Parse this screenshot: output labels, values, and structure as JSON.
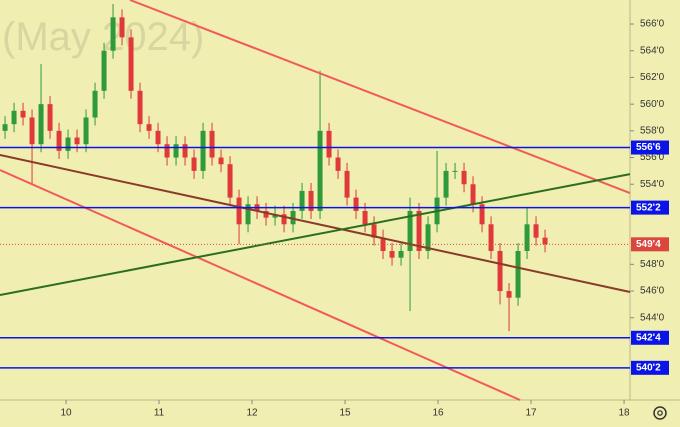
{
  "chart_data": {
    "type": "candlestick",
    "watermark": "(May 2024)",
    "up_color": "#2f9a3c",
    "down_color": "#e0393b",
    "x": [
      0,
      1,
      2,
      3,
      4,
      5,
      6,
      7,
      8,
      9,
      10,
      11,
      12,
      13,
      14,
      15,
      16,
      17,
      18,
      19,
      20,
      21,
      22,
      23,
      24,
      25,
      26,
      27,
      28,
      29,
      30,
      31,
      32,
      33,
      34,
      35,
      36,
      37,
      38,
      39,
      40,
      41,
      42,
      43,
      44,
      45,
      46,
      47,
      48,
      49,
      50,
      51,
      52,
      53,
      54,
      55,
      56,
      57,
      58,
      59,
      60
    ],
    "open": [
      558,
      558.5,
      559.5,
      559,
      557,
      560,
      558,
      556.5,
      557.5,
      557,
      559,
      561,
      564,
      566.5,
      565,
      561,
      558.5,
      558,
      557,
      556,
      557,
      556,
      555,
      558,
      556,
      555.5,
      553,
      551,
      552.5,
      552,
      551.5,
      551.75,
      551,
      552,
      553.5,
      552,
      558,
      556,
      555,
      553,
      552,
      551,
      550,
      549,
      548.5,
      549,
      552,
      549,
      551,
      553,
      555,
      555,
      554,
      552.5,
      551,
      549,
      546,
      545.5,
      549,
      551,
      550
    ],
    "high": [
      559.1,
      560.1,
      560.1,
      559.6,
      563,
      560.6,
      558.6,
      558.1,
      558.1,
      559.6,
      561.6,
      564.6,
      567.5,
      567.1,
      565.6,
      561.6,
      559.1,
      558.6,
      557.6,
      557.6,
      557.6,
      556.6,
      558.6,
      558.6,
      556.6,
      556.1,
      553.6,
      553.1,
      553.1,
      552.6,
      552.4,
      552.4,
      552.6,
      554.1,
      554.1,
      562.5,
      558.6,
      556.6,
      555.6,
      553.6,
      552.6,
      551.6,
      550.6,
      549.6,
      549.6,
      553,
      552.6,
      551.6,
      556.5,
      555.6,
      555.6,
      555.6,
      554.6,
      553.1,
      551.6,
      549.6,
      546.6,
      549.6,
      552.3,
      551.6,
      550.6
    ],
    "low": [
      557.4,
      557.9,
      558.4,
      554,
      556.4,
      557.4,
      555.9,
      555.9,
      556.4,
      556.4,
      558.4,
      560.4,
      563.4,
      564.4,
      560.4,
      557.9,
      557.4,
      556.4,
      555.4,
      555.4,
      555.4,
      554.4,
      554.4,
      555.4,
      554.9,
      552.4,
      549.5,
      550.4,
      551.4,
      550.9,
      550.9,
      550.4,
      550.4,
      551.4,
      551.4,
      551.4,
      555.4,
      554.4,
      552.4,
      551.4,
      550.4,
      549.4,
      548.4,
      547.9,
      547.9,
      544.5,
      548.4,
      548.4,
      550.4,
      552.4,
      554.4,
      553.4,
      551.9,
      550.4,
      548.4,
      545,
      543,
      544.9,
      548.4,
      549.4,
      548.9
    ],
    "close": [
      558.5,
      559.5,
      559,
      557,
      560,
      558,
      556.5,
      557.5,
      557,
      559,
      561,
      564,
      566.5,
      565,
      561,
      558.5,
      558,
      557,
      556,
      557,
      556,
      555,
      558,
      556,
      555.5,
      553,
      551,
      552.5,
      552,
      551.5,
      551.75,
      551,
      552,
      553.5,
      552,
      558,
      556,
      555,
      553,
      552,
      551,
      550,
      549,
      548.5,
      549,
      552,
      549,
      551,
      553,
      555,
      555,
      554,
      552.5,
      551,
      549,
      546,
      545.5,
      549,
      551,
      550,
      549.5
    ],
    "xlim": [
      -0.56,
      69.44
    ],
    "ylim": [
      537.84,
      567.8
    ],
    "xticks": [
      {
        "value": 6.78,
        "label": "10"
      },
      {
        "value": 17.11,
        "label": "11"
      },
      {
        "value": 27.44,
        "label": "12"
      },
      {
        "value": 37.78,
        "label": "15"
      },
      {
        "value": 48.11,
        "label": "16"
      },
      {
        "value": 58.44,
        "label": "17"
      },
      {
        "value": 68.78,
        "label": "18"
      }
    ],
    "yticks": [
      {
        "value": 566,
        "label": "566'0"
      },
      {
        "value": 564,
        "label": "564'0"
      },
      {
        "value": 562,
        "label": "562'0"
      },
      {
        "value": 560,
        "label": "560'0"
      },
      {
        "value": 558,
        "label": "558'0"
      },
      {
        "value": 556,
        "label": "556'0"
      },
      {
        "value": 554,
        "label": "554'0"
      },
      {
        "value": 548,
        "label": "548'0"
      },
      {
        "value": 546,
        "label": "546'0"
      },
      {
        "value": 544,
        "label": "544'0"
      }
    ],
    "levels": [
      {
        "value": 556.75,
        "label": "556'6",
        "color": "#0a14e6"
      },
      {
        "value": 552.25,
        "label": "552'2",
        "color": "#0a14e6"
      },
      {
        "value": 542.5,
        "label": "542'4",
        "color": "#0a14e6"
      },
      {
        "value": 540.25,
        "label": "540'2",
        "color": "#0a14e6"
      }
    ],
    "last_price": {
      "value": 549.5,
      "label": "549'4",
      "color": "#d9473f"
    },
    "trendlines": [
      {
        "color": "#f25a5a",
        "x": [
          13.89,
          69.44
        ],
        "y": [
          567.8,
          553.34
        ]
      },
      {
        "color": "#f25a5a",
        "x": [
          -0.56,
          57.22
        ],
        "y": [
          555.06,
          537.84
        ]
      },
      {
        "color": "#8a3a2a",
        "x": [
          -0.56,
          69.44
        ],
        "y": [
          556.19,
          545.93
        ]
      },
      {
        "color": "#2a6e1e",
        "x": [
          -0.56,
          69.44
        ],
        "y": [
          545.7,
          554.76
        ]
      }
    ]
  }
}
